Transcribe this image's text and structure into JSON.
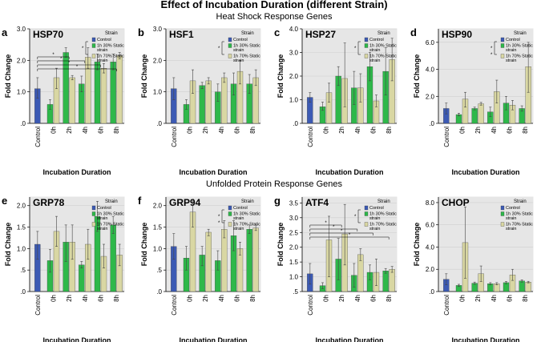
{
  "figure": {
    "title": "Effect of Incubation Duration (different Strain)",
    "section_top": "Heat Shock Response Genes",
    "section_bottom": "Unfolded Protein Response Genes"
  },
  "legend": {
    "title": "Strain",
    "entries": [
      "Control",
      "1h 30% Static strain",
      "1h 70% Static strain"
    ],
    "colors": {
      "control": "#3c5ab4",
      "static30": "#2eb84a",
      "static70": "#d9d7a3"
    }
  },
  "chart_data": [
    {
      "panel": "a",
      "gene": "HSP70",
      "type": "bar",
      "ylabel": "Fold Change",
      "xlabel": "Incubation Duration",
      "ylim": [
        0,
        3.0
      ],
      "ticks": [
        ".0",
        "1.0",
        "2.0",
        "3.0"
      ],
      "tick_values": [
        0,
        1,
        2,
        3
      ],
      "categories": [
        "Control",
        "0h",
        "2h",
        "4h",
        "6h",
        "8h"
      ],
      "control": {
        "value": 1.1,
        "err": [
          0.8,
          1.45
        ]
      },
      "static30": [
        {
          "value": 0.6,
          "err": [
            0.45,
            0.75
          ]
        },
        {
          "value": 2.25,
          "err": [
            2.1,
            2.4
          ]
        },
        {
          "value": 1.25,
          "err": [
            1.0,
            1.5
          ]
        },
        {
          "value": 1.95,
          "err": [
            1.7,
            2.2
          ]
        },
        {
          "value": 1.95,
          "err": [
            1.7,
            2.2
          ]
        }
      ],
      "static70": [
        {
          "value": 1.45,
          "err": [
            1.1,
            1.75
          ]
        },
        {
          "value": 1.45,
          "err": [
            1.38,
            1.52
          ]
        },
        {
          "value": 2.1,
          "err": [
            1.75,
            2.4
          ]
        },
        {
          "value": 1.75,
          "err": [
            1.6,
            1.9
          ]
        },
        {
          "value": 2.15,
          "err": [
            2.05,
            2.25
          ]
        }
      ],
      "significance": [
        "*",
        "*",
        "*",
        "*",
        "*"
      ]
    },
    {
      "panel": "b",
      "gene": "HSF1",
      "type": "bar",
      "ylabel": "Fold Change",
      "xlabel": "Incubation Duration",
      "ylim": [
        0,
        3.0
      ],
      "ticks": [
        ".0",
        "1.0",
        "2.0",
        "3.0"
      ],
      "tick_values": [
        0,
        1,
        2,
        3
      ],
      "categories": [
        "Control",
        "0h",
        "2h",
        "4h",
        "6h",
        "8h"
      ],
      "control": {
        "value": 1.1,
        "err": [
          0.75,
          1.45
        ]
      },
      "static30": [
        {
          "value": 0.6,
          "err": [
            0.45,
            0.75
          ]
        },
        {
          "value": 1.2,
          "err": [
            1.1,
            1.3
          ]
        },
        {
          "value": 1.0,
          "err": [
            0.7,
            1.25
          ]
        },
        {
          "value": 1.25,
          "err": [
            0.9,
            1.6
          ]
        },
        {
          "value": 1.25,
          "err": [
            0.95,
            1.55
          ]
        }
      ],
      "static70": [
        {
          "value": 1.35,
          "err": [
            0.95,
            1.7
          ]
        },
        {
          "value": 1.35,
          "err": [
            1.25,
            1.45
          ]
        },
        {
          "value": 1.45,
          "err": [
            1.3,
            1.6
          ]
        },
        {
          "value": 1.65,
          "err": [
            1.25,
            2.0
          ]
        },
        {
          "value": 1.45,
          "err": [
            1.2,
            1.7
          ]
        }
      ],
      "significance": [
        "*"
      ]
    },
    {
      "panel": "c",
      "gene": "HSP27",
      "type": "bar",
      "ylabel": "Fold Change",
      "xlabel": "Incubation Duration",
      "ylim": [
        0,
        4.0
      ],
      "ticks": [
        ".0",
        "1.0",
        "2.0",
        "3.0",
        "4.0"
      ],
      "tick_values": [
        0,
        1,
        2,
        3,
        4
      ],
      "categories": [
        "Control",
        "0h",
        "2h",
        "4h",
        "6h",
        "8h"
      ],
      "control": {
        "value": 1.1,
        "err": [
          0.9,
          1.3
        ]
      },
      "static30": [
        {
          "value": 0.7,
          "err": [
            0.55,
            0.9
          ]
        },
        {
          "value": 2.0,
          "err": [
            1.6,
            2.4
          ]
        },
        {
          "value": 1.5,
          "err": [
            0.8,
            2.2
          ]
        },
        {
          "value": 2.4,
          "err": [
            1.8,
            3.0
          ]
        },
        {
          "value": 2.2,
          "err": [
            1.2,
            3.2
          ]
        }
      ],
      "static70": [
        {
          "value": 1.3,
          "err": [
            0.9,
            1.7
          ]
        },
        {
          "value": 1.9,
          "err": [
            0.7,
            3.4
          ]
        },
        {
          "value": 1.5,
          "err": [
            0.9,
            2.1
          ]
        },
        {
          "value": 0.95,
          "err": [
            0.7,
            1.2
          ]
        },
        {
          "value": 2.7,
          "err": [
            1.8,
            3.6
          ]
        }
      ],
      "significance": [
        "*"
      ]
    },
    {
      "panel": "d",
      "gene": "HSP90",
      "type": "bar",
      "ylabel": "Fold Change",
      "xlabel": "Incubation Duration",
      "ylim": [
        0,
        7.0
      ],
      "ticks": [
        ".0",
        "2.0",
        "4.0",
        "6.0"
      ],
      "tick_values": [
        0,
        2,
        4,
        6
      ],
      "categories": [
        "Control",
        "0h",
        "2h",
        "4h",
        "6h",
        "8h"
      ],
      "control": {
        "value": 1.1,
        "err": [
          0.7,
          1.5
        ]
      },
      "static30": [
        {
          "value": 0.65,
          "err": [
            0.55,
            0.75
          ]
        },
        {
          "value": 1.1,
          "err": [
            1.0,
            1.2
          ]
        },
        {
          "value": 0.85,
          "err": [
            0.5,
            1.2
          ]
        },
        {
          "value": 1.5,
          "err": [
            1.0,
            2.0
          ]
        },
        {
          "value": 1.1,
          "err": [
            0.9,
            1.3
          ]
        }
      ],
      "static70": [
        {
          "value": 1.8,
          "err": [
            1.2,
            2.3
          ]
        },
        {
          "value": 1.45,
          "err": [
            1.35,
            1.55
          ]
        },
        {
          "value": 2.35,
          "err": [
            1.5,
            3.2
          ]
        },
        {
          "value": 1.35,
          "err": [
            1.0,
            1.7
          ]
        },
        {
          "value": 4.2,
          "err": [
            2.3,
            6.0
          ]
        }
      ],
      "significance": [
        "*",
        "*"
      ]
    },
    {
      "panel": "e",
      "gene": "GRP78",
      "type": "bar",
      "ylabel": "Fold Change",
      "xlabel": "Incubation Duration",
      "ylim": [
        0,
        2.2
      ],
      "ticks": [
        ".0",
        ".5",
        "1.0",
        "1.5",
        "2.0"
      ],
      "tick_values": [
        0,
        0.5,
        1,
        1.5,
        2
      ],
      "categories": [
        "Control",
        "0h",
        "2h",
        "4h",
        "6h",
        "8h"
      ],
      "control": {
        "value": 1.1,
        "err": [
          0.75,
          1.4
        ]
      },
      "static30": [
        {
          "value": 0.72,
          "err": [
            0.45,
            0.98
          ]
        },
        {
          "value": 1.15,
          "err": [
            0.7,
            1.55
          ]
        },
        {
          "value": 0.62,
          "err": [
            0.55,
            0.7
          ]
        },
        {
          "value": 1.75,
          "err": [
            1.4,
            2.1
          ]
        },
        {
          "value": 1.55,
          "err": [
            1.35,
            1.75
          ]
        }
      ],
      "static70": [
        {
          "value": 1.4,
          "err": [
            1.05,
            1.75
          ]
        },
        {
          "value": 1.15,
          "err": [
            0.75,
            1.55
          ]
        },
        {
          "value": 1.1,
          "err": [
            0.75,
            1.45
          ]
        },
        {
          "value": 0.82,
          "err": [
            0.55,
            1.1
          ]
        },
        {
          "value": 0.85,
          "err": [
            0.6,
            1.1
          ]
        }
      ],
      "significance": []
    },
    {
      "panel": "f",
      "gene": "GRP94",
      "type": "bar",
      "ylabel": "Fold Change",
      "xlabel": "Incubation Duration",
      "ylim": [
        0,
        2.2
      ],
      "ticks": [
        ".0",
        ".5",
        "1.0",
        "1.5",
        "2.0"
      ],
      "tick_values": [
        0,
        0.5,
        1,
        1.5,
        2
      ],
      "categories": [
        "Control",
        "0h",
        "2h",
        "4h",
        "6h",
        "8h"
      ],
      "control": {
        "value": 1.05,
        "err": [
          0.75,
          1.35
        ]
      },
      "static30": [
        {
          "value": 0.78,
          "err": [
            0.5,
            1.05
          ]
        },
        {
          "value": 0.85,
          "err": [
            0.6,
            1.05
          ]
        },
        {
          "value": 0.72,
          "err": [
            0.5,
            0.95
          ]
        },
        {
          "value": 1.3,
          "err": [
            0.95,
            1.65
          ]
        },
        {
          "value": 1.45,
          "err": [
            1.35,
            1.55
          ]
        }
      ],
      "static70": [
        {
          "value": 1.85,
          "err": [
            1.5,
            2.15
          ]
        },
        {
          "value": 1.38,
          "err": [
            1.3,
            1.45
          ]
        },
        {
          "value": 1.45,
          "err": [
            1.25,
            1.65
          ]
        },
        {
          "value": 1.0,
          "err": [
            0.85,
            1.15
          ]
        },
        {
          "value": 1.48,
          "err": [
            1.42,
            1.55
          ]
        }
      ],
      "significance": [
        "*",
        "*"
      ]
    },
    {
      "panel": "g",
      "gene": "ATF4",
      "type": "bar",
      "ylabel": "Fold Change",
      "xlabel": "Incubation Duration",
      "ylim": [
        0.5,
        3.7
      ],
      "ticks": [
        ".5",
        "1.0",
        "1.5",
        "2.0",
        "2.5",
        "3.0",
        "3.5"
      ],
      "tick_values": [
        0.5,
        1,
        1.5,
        2,
        2.5,
        3,
        3.5
      ],
      "categories": [
        "Control",
        "0h",
        "2h",
        "4h",
        "6h",
        "8h"
      ],
      "control": {
        "value": 1.1,
        "err": [
          0.75,
          1.45
        ]
      },
      "static30": [
        {
          "value": 0.7,
          "err": [
            0.6,
            0.8
          ]
        },
        {
          "value": 1.6,
          "err": [
            0.9,
            2.3
          ]
        },
        {
          "value": 1.05,
          "err": [
            0.65,
            1.45
          ]
        },
        {
          "value": 1.15,
          "err": [
            0.9,
            1.4
          ]
        },
        {
          "value": 1.2,
          "err": [
            1.12,
            1.28
          ]
        }
      ],
      "static70": [
        {
          "value": 2.25,
          "err": [
            1.0,
            3.05
          ]
        },
        {
          "value": 2.45,
          "err": [
            1.4,
            3.45
          ]
        },
        {
          "value": 1.75,
          "err": [
            1.55,
            1.95
          ]
        },
        {
          "value": 1.15,
          "err": [
            0.7,
            1.6
          ]
        },
        {
          "value": 1.25,
          "err": [
            1.15,
            1.35
          ]
        }
      ],
      "significance": [
        "*",
        "*",
        "*",
        "*",
        "*"
      ]
    },
    {
      "panel": "",
      "gene": "CHOP",
      "type": "bar",
      "ylabel": "Fold Change",
      "xlabel": "Incubation Duration",
      "ylim": [
        0,
        8.5
      ],
      "ticks": [
        ".0",
        "2.0",
        "4.0",
        "6.0",
        "8.0"
      ],
      "tick_values": [
        0,
        2,
        4,
        6,
        8
      ],
      "categories": [
        "Control",
        "0h",
        "2h",
        "4h",
        "6h",
        "8h"
      ],
      "control": {
        "value": 1.1,
        "err": [
          0.6,
          1.6
        ]
      },
      "static30": [
        {
          "value": 0.55,
          "err": [
            0.45,
            0.65
          ]
        },
        {
          "value": 0.75,
          "err": [
            0.65,
            0.85
          ]
        },
        {
          "value": 0.7,
          "err": [
            0.6,
            0.8
          ]
        },
        {
          "value": 0.8,
          "err": [
            0.7,
            0.9
          ]
        },
        {
          "value": 0.95,
          "err": [
            0.85,
            1.05
          ]
        }
      ],
      "static70": [
        {
          "value": 4.4,
          "err": [
            1.2,
            7.6
          ]
        },
        {
          "value": 1.6,
          "err": [
            0.9,
            2.3
          ]
        },
        {
          "value": 0.7,
          "err": [
            0.6,
            0.8
          ]
        },
        {
          "value": 1.5,
          "err": [
            1.0,
            2.0
          ]
        },
        {
          "value": 0.85,
          "err": [
            0.78,
            0.92
          ]
        }
      ],
      "significance": []
    }
  ]
}
